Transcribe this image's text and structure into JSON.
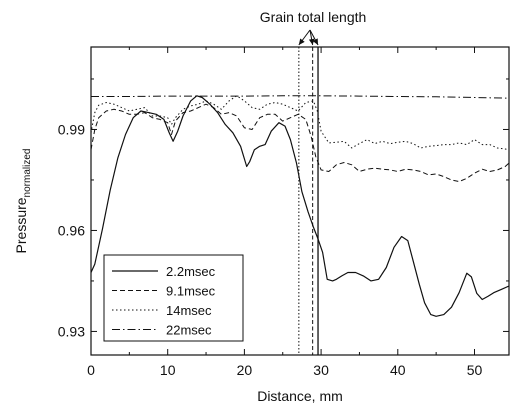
{
  "chart_data": {
    "type": "line",
    "title": "",
    "xlabel": "Distance, mm",
    "ylabel": "Pressure",
    "ylabel_subscript": "normalized",
    "xlim": [
      0,
      54.5
    ],
    "ylim": [
      0.923,
      1.0145
    ],
    "xticks": [
      0,
      10,
      20,
      30,
      40,
      50
    ],
    "xtick_labels": [
      "0",
      "10",
      "20",
      "30",
      "40",
      "50"
    ],
    "yticks": [
      0.93,
      0.96,
      0.99
    ],
    "ytick_labels": [
      "0.93",
      "0.96",
      "0.99"
    ],
    "grid": false,
    "legend_position": "bottom-left",
    "annotation": {
      "text": "Grain total length",
      "markers_x": [
        27.1,
        28.9,
        29.6
      ]
    },
    "series": [
      {
        "name": "2.2msec",
        "style": "solid",
        "x": [
          0,
          0.5,
          1.5,
          2.5,
          3.5,
          4.5,
          5.5,
          6.5,
          7.5,
          8.5,
          9.5,
          10.2,
          10.7,
          11.3,
          12,
          13,
          13.8,
          14.5,
          15.5,
          16.5,
          17.5,
          18.5,
          19.5,
          20.3,
          20.7,
          21.3,
          22,
          22.7,
          23.5,
          24.5,
          25.3,
          26,
          26.8,
          27.5,
          28.3,
          29,
          29.6,
          30.2,
          30.8,
          31.5,
          32,
          32.7,
          33.5,
          34.5,
          35.5,
          36.5,
          37.5,
          38.5,
          39.5,
          40.5,
          41.3,
          42,
          42.8,
          43.5,
          44.3,
          45,
          46,
          47,
          48,
          49,
          49.6,
          50.3,
          51,
          51.8,
          52.5,
          53.5,
          54.5
        ],
        "values": [
          0.9475,
          0.95,
          0.9605,
          0.972,
          0.9815,
          0.9885,
          0.9935,
          0.9955,
          0.995,
          0.9945,
          0.993,
          0.989,
          0.9865,
          0.9895,
          0.994,
          0.9985,
          1.0,
          0.9995,
          0.9975,
          0.995,
          0.9915,
          0.989,
          0.985,
          0.979,
          0.9805,
          0.984,
          0.985,
          0.9855,
          0.9895,
          0.992,
          0.991,
          0.987,
          0.98,
          0.9715,
          0.9655,
          0.961,
          0.9575,
          0.9535,
          0.9455,
          0.945,
          0.9455,
          0.9465,
          0.9475,
          0.9475,
          0.9465,
          0.945,
          0.9455,
          0.949,
          0.955,
          0.9582,
          0.957,
          0.951,
          0.944,
          0.9385,
          0.935,
          0.9345,
          0.935,
          0.9372,
          0.9415,
          0.9473,
          0.9462,
          0.9413,
          0.9395,
          0.9405,
          0.9415,
          0.9425,
          0.9435
        ]
      },
      {
        "name": "9.1msec",
        "style": "dashed",
        "x": [
          0,
          0.5,
          1,
          2,
          3,
          4,
          5,
          6,
          7,
          8,
          9,
          10,
          10.5,
          11,
          12,
          13,
          14,
          15,
          16,
          17,
          18,
          19,
          20,
          21,
          22,
          23,
          24,
          25,
          26,
          27,
          28,
          28.7,
          29.3,
          30,
          31,
          32,
          33,
          34,
          35,
          36,
          37,
          38,
          39,
          40,
          41,
          42,
          43,
          44,
          45,
          46,
          47,
          48,
          49,
          50,
          51,
          52,
          53,
          54,
          54.5
        ],
        "values": [
          0.984,
          0.99,
          0.9935,
          0.9955,
          0.996,
          0.9955,
          0.9945,
          0.9945,
          0.995,
          0.9935,
          0.993,
          0.992,
          0.9885,
          0.9925,
          0.995,
          0.9955,
          0.9965,
          0.9975,
          0.9965,
          0.9945,
          0.995,
          0.994,
          0.9905,
          0.99,
          0.9935,
          0.9945,
          0.9945,
          0.9925,
          0.9935,
          0.9945,
          0.993,
          0.988,
          0.982,
          0.978,
          0.9775,
          0.9795,
          0.9802,
          0.9795,
          0.9775,
          0.9782,
          0.9785,
          0.9782,
          0.978,
          0.9775,
          0.9782,
          0.978,
          0.9775,
          0.9765,
          0.9768,
          0.976,
          0.975,
          0.9745,
          0.9755,
          0.977,
          0.9782,
          0.9775,
          0.978,
          0.979,
          0.98
        ]
      },
      {
        "name": "14msec",
        "style": "dotted",
        "x": [
          0,
          0.5,
          1,
          2,
          3,
          4,
          5,
          6,
          7,
          8,
          9,
          10,
          10.5,
          11,
          12,
          13,
          14,
          15,
          16,
          17,
          18,
          19,
          20,
          21,
          22,
          23,
          24,
          25,
          26,
          27,
          28,
          29,
          29.5,
          30,
          31,
          32,
          33,
          34,
          35,
          36,
          37,
          38,
          39,
          40,
          41,
          42,
          43,
          44,
          45,
          46,
          47,
          48,
          49,
          50,
          51,
          52,
          53,
          54,
          54.5
        ],
        "values": [
          0.989,
          0.995,
          0.9972,
          0.998,
          0.9975,
          0.9965,
          0.9955,
          0.996,
          0.9965,
          0.994,
          0.994,
          0.9935,
          0.9915,
          0.9935,
          0.996,
          0.997,
          0.9975,
          0.9985,
          0.9975,
          0.996,
          0.9985,
          1.0,
          0.9985,
          0.9965,
          0.996,
          0.9975,
          0.998,
          0.9975,
          0.9965,
          0.9955,
          0.998,
          0.9985,
          0.9955,
          0.9895,
          0.986,
          0.9862,
          0.9865,
          0.9845,
          0.9858,
          0.987,
          0.9858,
          0.9865,
          0.9858,
          0.9862,
          0.9865,
          0.9858,
          0.9845,
          0.985,
          0.9852,
          0.9855,
          0.9855,
          0.986,
          0.9855,
          0.987,
          0.9855,
          0.9855,
          0.9845,
          0.9842,
          0.984
        ]
      },
      {
        "name": "22msec",
        "style": "dashdot",
        "x": [
          0,
          5,
          10,
          15,
          20,
          25,
          30,
          35,
          40,
          45,
          50,
          54.5
        ],
        "values": [
          0.9998,
          0.9998,
          0.9999,
          0.9999,
          0.9999,
          1.0,
          1.0,
          0.9999,
          0.9998,
          0.9997,
          0.9995,
          0.9993
        ]
      }
    ]
  }
}
